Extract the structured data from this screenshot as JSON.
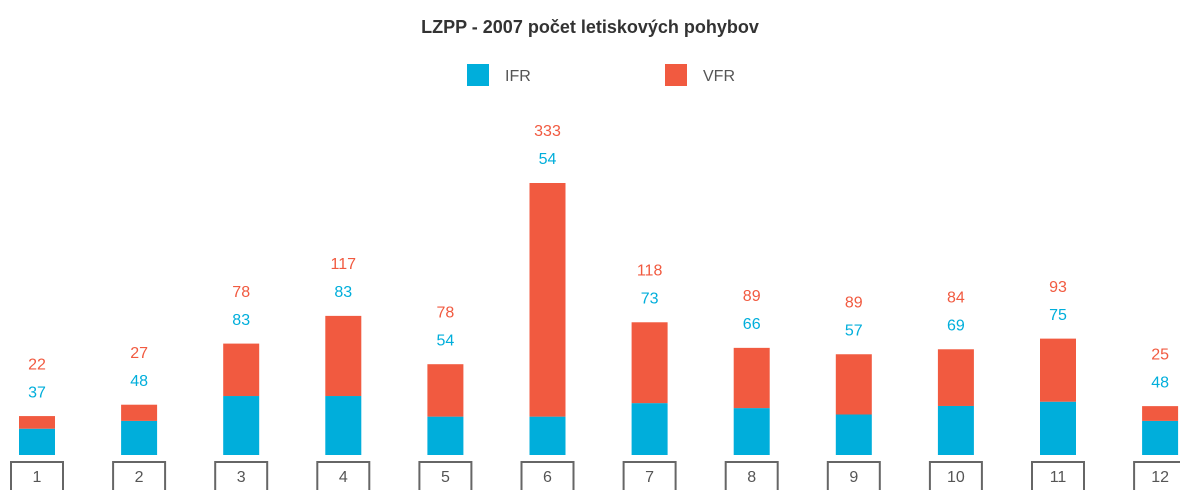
{
  "chart_data": {
    "type": "bar",
    "stacked": true,
    "title": "LZPP - 2007 počet letiskových pohybov",
    "categories": [
      "1",
      "2",
      "3",
      "4",
      "5",
      "6",
      "7",
      "8",
      "9",
      "10",
      "11",
      "12"
    ],
    "series": [
      {
        "name": "IFR",
        "color": "#00aedb",
        "values": [
          37,
          48,
          83,
          83,
          54,
          54,
          73,
          66,
          57,
          69,
          75,
          48
        ]
      },
      {
        "name": "VFR",
        "color": "#f15a40",
        "values": [
          22,
          27,
          78,
          117,
          78,
          333,
          118,
          89,
          89,
          84,
          93,
          25
        ]
      }
    ]
  }
}
